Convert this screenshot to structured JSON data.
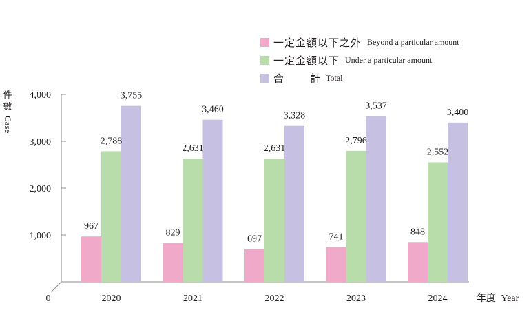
{
  "chart_data": {
    "type": "bar",
    "categories": [
      "2020",
      "2021",
      "2022",
      "2023",
      "2024"
    ],
    "series": [
      {
        "name_zh": "一定金額以下之外",
        "name_en": "Beyond a particular amount",
        "color": "#f0a9c9",
        "values": [
          967,
          829,
          697,
          741,
          848
        ]
      },
      {
        "name_zh": "一定金額以下",
        "name_en": "Under a particular amount",
        "color": "#b8dcaa",
        "values": [
          2788,
          2631,
          2631,
          2796,
          2552
        ]
      },
      {
        "name_zh": "合計",
        "name_en": "Total",
        "color": "#c6c1e2",
        "values": [
          3755,
          3460,
          3328,
          3537,
          3400
        ]
      }
    ],
    "value_labels": [
      [
        "967",
        "829",
        "697",
        "741",
        "848"
      ],
      [
        "2,788",
        "2,631",
        "2,631",
        "2,796",
        "2,552"
      ],
      [
        "3,755",
        "3,460",
        "3,328",
        "3,537",
        "3,400"
      ]
    ],
    "yticks": [
      1000,
      2000,
      3000,
      4000
    ],
    "ytick_labels": [
      "1,000",
      "2,000",
      "3,000",
      "4,000"
    ],
    "origin_label": "0",
    "ylim": [
      0,
      4000
    ],
    "ylabel": {
      "zh": [
        "件",
        "數"
      ],
      "en": "Case"
    },
    "xlabel": {
      "zh": "年度",
      "en": "Year"
    },
    "legend_position": "top-right",
    "grid": false
  },
  "legend": {
    "total_zh_first": "合",
    "total_zh_second": "計"
  }
}
